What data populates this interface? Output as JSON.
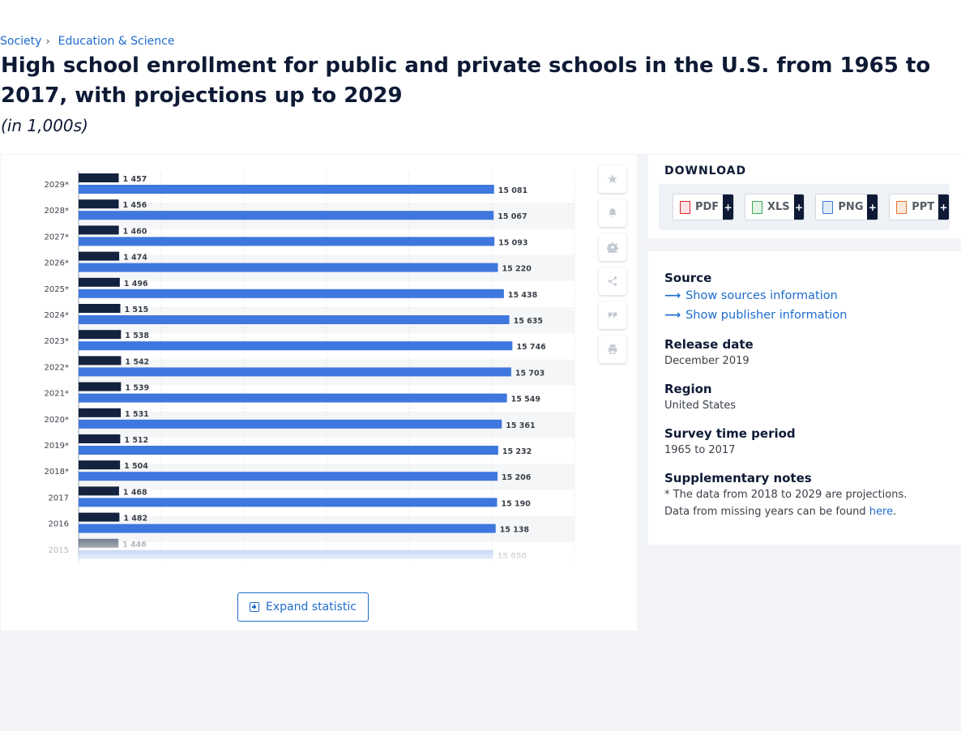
{
  "breadcrumb": {
    "item1": "Society",
    "separator": "›",
    "item2": "Education & Science"
  },
  "title": "High school enrollment for public and private schools in the U.S. from 1965 to 2017, with projections up to 2029",
  "subtitle": "(in 1,000s)",
  "chart_data": {
    "type": "bar",
    "orientation": "horizontal",
    "categories": [
      "2029*",
      "2028*",
      "2027*",
      "2026*",
      "2025*",
      "2024*",
      "2023*",
      "2022*",
      "2021*",
      "2020*",
      "2019*",
      "2018*",
      "2017",
      "2016",
      "2015"
    ],
    "series": [
      {
        "values": [
          1457,
          1456,
          1460,
          1474,
          1496,
          1515,
          1538,
          1542,
          1539,
          1531,
          1512,
          1504,
          1468,
          1482,
          1446
        ],
        "color": "#13223f"
      },
      {
        "values": [
          15081,
          15067,
          15093,
          15220,
          15438,
          15635,
          15746,
          15703,
          15549,
          15361,
          15232,
          15206,
          15190,
          15138,
          15050
        ],
        "color": "#3e77dd"
      }
    ],
    "value_labels": {
      "dark": [
        "1 457",
        "1 456",
        "1 460",
        "1 474",
        "1 496",
        "1 515",
        "1 538",
        "1 542",
        "1 539",
        "1 531",
        "1 512",
        "1 504",
        "1 468",
        "1 482",
        "1 446"
      ],
      "blue": [
        "15 081",
        "15 067",
        "15 093",
        "15 220",
        "15 438",
        "15 635",
        "15 746",
        "15 703",
        "15 549",
        "15 361",
        "15 232",
        "15 206",
        "15 190",
        "15 138",
        "15 050"
      ]
    },
    "xlim": [
      0,
      18000
    ],
    "grid": true,
    "legend": "none",
    "faded_last_row": true
  },
  "tools": [
    "star-icon",
    "bell-icon",
    "gear-icon",
    "share-icon",
    "quote-icon",
    "print-icon"
  ],
  "expand_label": "Expand statistic",
  "download": {
    "heading": "DOWNLOAD",
    "buttons": [
      {
        "label": "PDF",
        "plus": "+",
        "color": "#d9232d"
      },
      {
        "label": "XLS",
        "plus": "+",
        "color": "#3aa655"
      },
      {
        "label": "PNG",
        "plus": "+",
        "color": "#3a7bd5"
      },
      {
        "label": "PPT",
        "plus": "+",
        "color": "#e8702a"
      }
    ]
  },
  "source": {
    "heading": "Source",
    "show_sources": "Show sources information",
    "show_publisher": "Show publisher information",
    "release_heading": "Release date",
    "release_value": "December 2019",
    "region_heading": "Region",
    "region_value": "United States",
    "survey_heading": "Survey time period",
    "survey_value": "1965 to 2017",
    "notes_heading": "Supplementary notes",
    "notes_line1": "* The data from 2018 to 2029 are projections.",
    "notes_line2_text": "Data from missing years can be found ",
    "notes_link": "here",
    "notes_end": "."
  }
}
